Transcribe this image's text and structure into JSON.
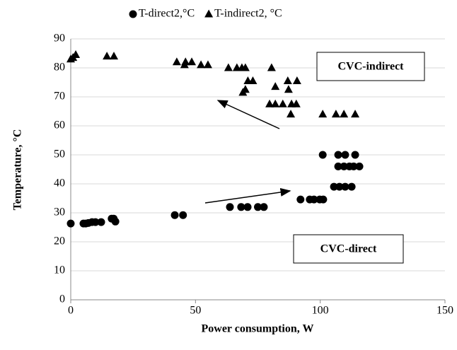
{
  "chart_data": {
    "type": "scatter",
    "xlabel": "Power consumption, W",
    "ylabel": "Temperature, °C",
    "xlim": [
      0,
      150
    ],
    "xticks": [
      0,
      50,
      100,
      150
    ],
    "ylim": [
      0,
      90
    ],
    "yticks": [
      0,
      10,
      20,
      30,
      40,
      50,
      60,
      70,
      80,
      90
    ],
    "grid": true,
    "legend": "top",
    "annotations": [
      "CVC-indirect",
      "CVC-direct"
    ],
    "series": [
      {
        "name": "T-direct2,°C",
        "color": "#000000",
        "marker": "circle",
        "x": [
          0,
          5.1,
          6,
          7.1,
          8.5,
          9.9,
          12.2,
          16.4,
          17.2,
          17.9,
          41.7,
          45,
          63.8,
          68.3,
          70.9,
          75,
          77.4,
          92.1,
          95.8,
          97.5,
          99.8,
          101.2,
          101,
          105.5,
          107.7,
          110,
          112.6,
          107.2,
          109.5,
          111.7,
          113.4,
          115.7,
          107.2,
          110,
          114
        ],
        "y": [
          26.3,
          26.3,
          26.3,
          26.5,
          26.8,
          26.8,
          26.8,
          28,
          28,
          27,
          29.2,
          29.2,
          32,
          32,
          32,
          32,
          32,
          34.6,
          34.6,
          34.6,
          34.6,
          34.6,
          50,
          39,
          39,
          39,
          39,
          46,
          46,
          46,
          46,
          46,
          50,
          50,
          50
        ]
      },
      {
        "name": "T-indirect2, °C",
        "color": "#000000",
        "marker": "triangle",
        "x": [
          0,
          0.9,
          2,
          14.5,
          17.3,
          42.5,
          45.6,
          46,
          48.5,
          52.2,
          55,
          63.2,
          66.6,
          68.6,
          70,
          69,
          70,
          71,
          73,
          80.5,
          82,
          79.7,
          82,
          85,
          88.5,
          87.3,
          87,
          90.7,
          88.2,
          90.4,
          101,
          106.3,
          109.5,
          114
        ],
        "y": [
          83,
          83.5,
          84.5,
          84,
          84,
          82,
          81,
          82,
          82,
          81,
          81,
          80,
          80,
          80,
          80,
          71.5,
          72.5,
          75.5,
          75.5,
          80,
          73.5,
          67.5,
          67.5,
          67.5,
          67.5,
          72.5,
          75.5,
          75.5,
          64,
          67.5,
          64,
          64,
          64,
          64
        ]
      }
    ]
  }
}
